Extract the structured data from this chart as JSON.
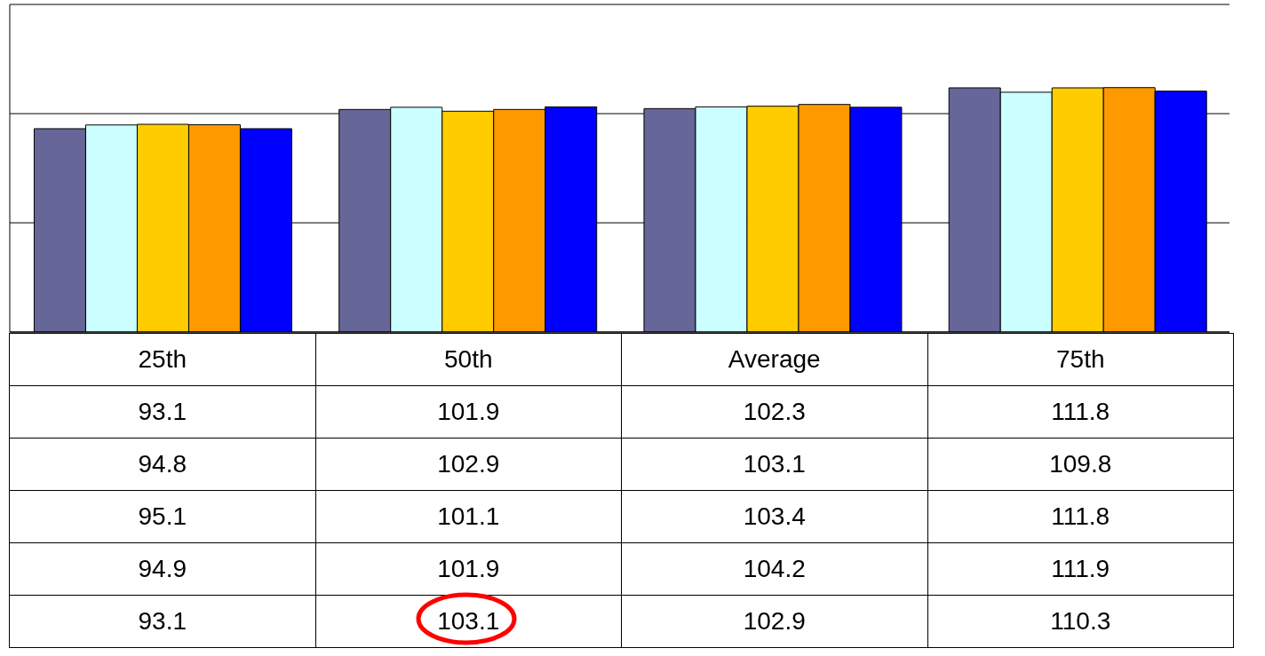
{
  "chart_data": {
    "type": "bar",
    "categories": [
      "25th",
      "50th",
      "Average",
      "75th"
    ],
    "series": [
      {
        "color": "#666699",
        "values": [
          93.1,
          101.9,
          102.3,
          111.8
        ]
      },
      {
        "color": "#ccffff",
        "values": [
          94.8,
          102.9,
          103.1,
          109.8
        ]
      },
      {
        "color": "#ffcc00",
        "values": [
          95.1,
          101.1,
          103.4,
          111.8
        ]
      },
      {
        "color": "#ff9900",
        "values": [
          94.9,
          101.9,
          104.2,
          111.9
        ]
      },
      {
        "color": "#0000ff",
        "values": [
          93.1,
          103.1,
          102.9,
          110.3
        ]
      }
    ],
    "ylim": [
      0,
      150
    ],
    "yticks": [
      {
        "value": 0,
        "label": null
      },
      {
        "value": 50,
        "label": null
      },
      {
        "value": 100,
        "label": null
      },
      {
        "value": 150,
        "label": null
      }
    ],
    "grid": "y",
    "data_labels": true,
    "tick_labels": "x"
  }
}
